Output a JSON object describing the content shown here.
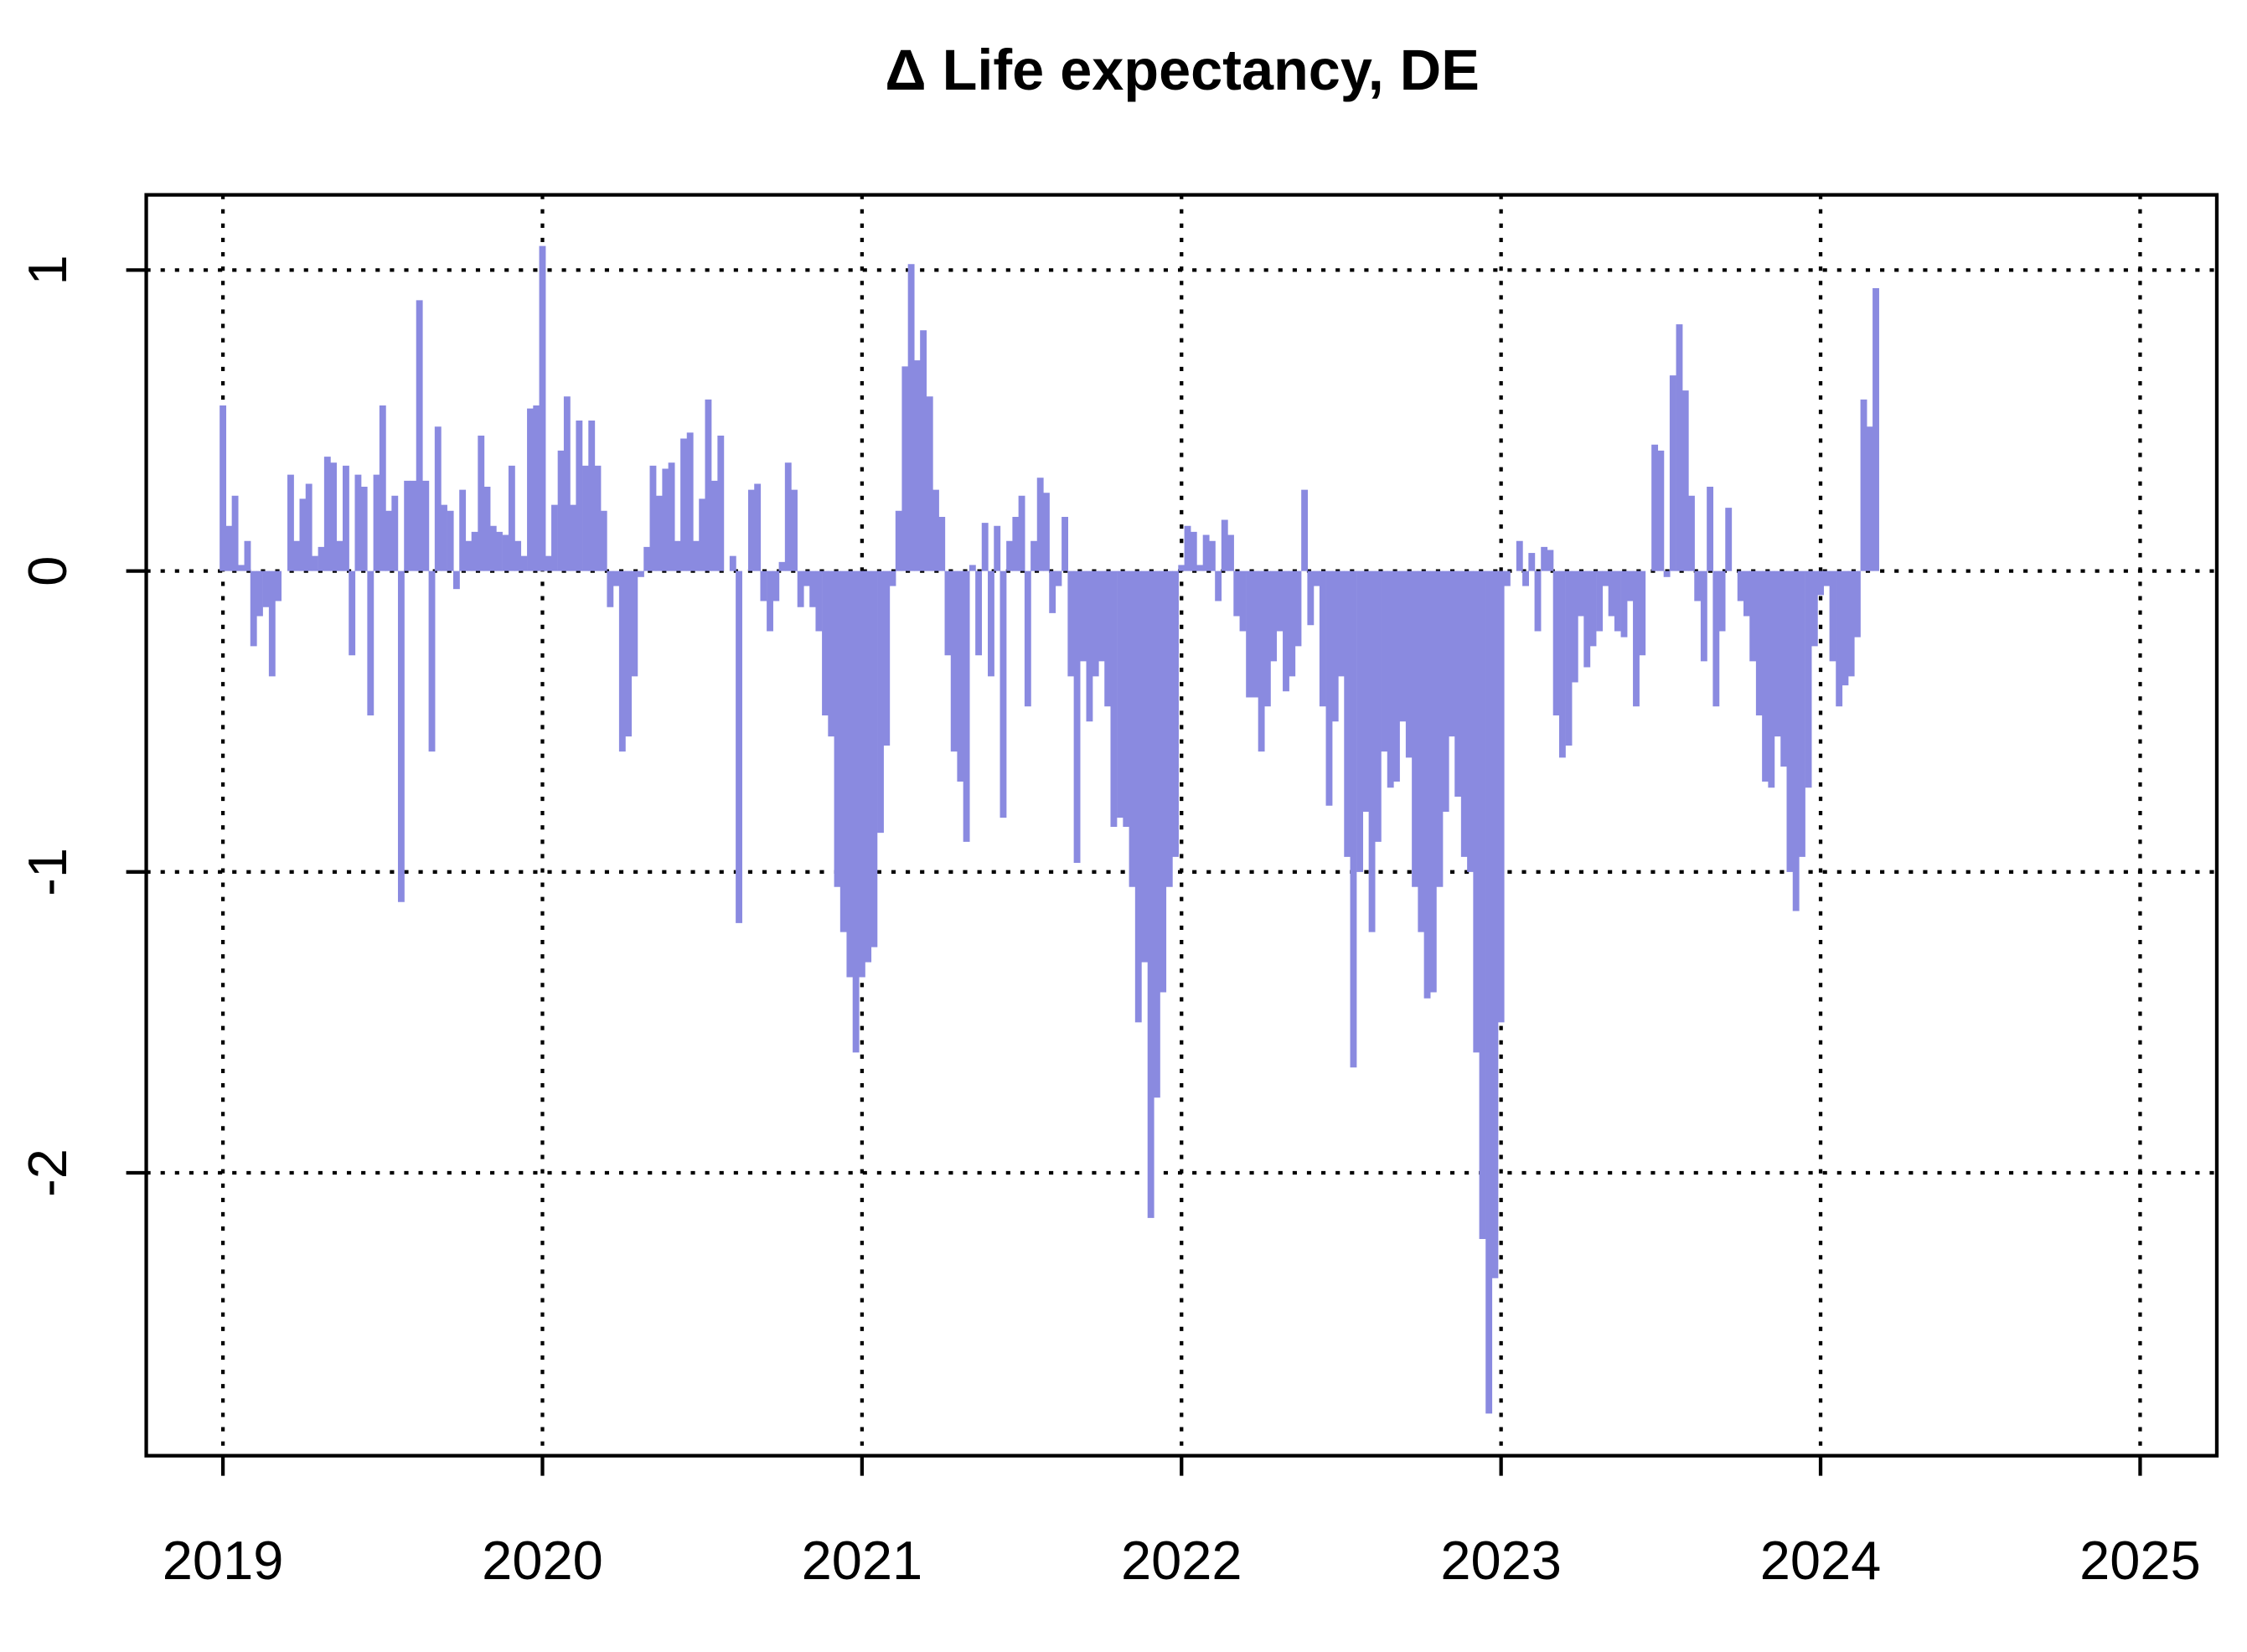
{
  "chart_data": {
    "type": "spike",
    "title": "Δ Life expectancy, DE",
    "color": "#8a8ae0",
    "grid": true,
    "xlim": [
      2018.76,
      2025.24
    ],
    "ylim": [
      -2.94,
      1.25
    ],
    "xticks": [
      2019,
      2020,
      2021,
      2022,
      2023,
      2024,
      2025
    ],
    "yticks": [
      -2,
      -1,
      0,
      1
    ],
    "x": [
      2019.0,
      2019.019,
      2019.038,
      2019.058,
      2019.077,
      2019.096,
      2019.115,
      2019.135,
      2019.154,
      2019.173,
      2019.192,
      2019.212,
      2019.231,
      2019.25,
      2019.269,
      2019.288,
      2019.308,
      2019.327,
      2019.346,
      2019.365,
      2019.385,
      2019.404,
      2019.423,
      2019.442,
      2019.462,
      2019.481,
      2019.5,
      2019.519,
      2019.538,
      2019.558,
      2019.577,
      2019.596,
      2019.615,
      2019.635,
      2019.654,
      2019.673,
      2019.692,
      2019.712,
      2019.731,
      2019.75,
      2019.769,
      2019.788,
      2019.808,
      2019.827,
      2019.846,
      2019.865,
      2019.885,
      2019.904,
      2019.923,
      2019.942,
      2019.962,
      2019.981,
      2020.0,
      2020.019,
      2020.038,
      2020.058,
      2020.077,
      2020.096,
      2020.115,
      2020.135,
      2020.154,
      2020.173,
      2020.192,
      2020.212,
      2020.231,
      2020.25,
      2020.269,
      2020.288,
      2020.308,
      2020.327,
      2020.346,
      2020.365,
      2020.385,
      2020.404,
      2020.423,
      2020.442,
      2020.462,
      2020.481,
      2020.5,
      2020.519,
      2020.538,
      2020.558,
      2020.577,
      2020.596,
      2020.615,
      2020.635,
      2020.654,
      2020.673,
      2020.692,
      2020.712,
      2020.731,
      2020.75,
      2020.769,
      2020.788,
      2020.808,
      2020.827,
      2020.846,
      2020.865,
      2020.885,
      2020.904,
      2020.923,
      2020.942,
      2020.962,
      2020.981,
      2021.0,
      2021.019,
      2021.038,
      2021.058,
      2021.077,
      2021.096,
      2021.115,
      2021.135,
      2021.154,
      2021.173,
      2021.192,
      2021.212,
      2021.231,
      2021.25,
      2021.269,
      2021.288,
      2021.308,
      2021.327,
      2021.346,
      2021.365,
      2021.385,
      2021.404,
      2021.423,
      2021.442,
      2021.462,
      2021.481,
      2021.5,
      2021.519,
      2021.538,
      2021.558,
      2021.577,
      2021.596,
      2021.615,
      2021.635,
      2021.654,
      2021.673,
      2021.692,
      2021.712,
      2021.731,
      2021.75,
      2021.769,
      2021.788,
      2021.808,
      2021.827,
      2021.846,
      2021.865,
      2021.885,
      2021.904,
      2021.923,
      2021.942,
      2021.962,
      2021.981,
      2022.0,
      2022.019,
      2022.038,
      2022.058,
      2022.077,
      2022.096,
      2022.115,
      2022.135,
      2022.154,
      2022.173,
      2022.192,
      2022.212,
      2022.231,
      2022.25,
      2022.269,
      2022.288,
      2022.308,
      2022.327,
      2022.346,
      2022.365,
      2022.385,
      2022.404,
      2022.423,
      2022.442,
      2022.462,
      2022.481,
      2022.5,
      2022.519,
      2022.538,
      2022.558,
      2022.577,
      2022.596,
      2022.615,
      2022.635,
      2022.654,
      2022.673,
      2022.692,
      2022.712,
      2022.731,
      2022.75,
      2022.769,
      2022.788,
      2022.808,
      2022.827,
      2022.846,
      2022.865,
      2022.885,
      2022.904,
      2022.923,
      2022.942,
      2022.962,
      2022.981,
      2023.0,
      2023.019,
      2023.038,
      2023.058,
      2023.077,
      2023.096,
      2023.115,
      2023.135,
      2023.154,
      2023.173,
      2023.192,
      2023.212,
      2023.231,
      2023.25,
      2023.269,
      2023.288,
      2023.308,
      2023.327,
      2023.346,
      2023.365,
      2023.385,
      2023.404,
      2023.423,
      2023.442,
      2023.462,
      2023.481,
      2023.5,
      2023.519,
      2023.538,
      2023.558,
      2023.577,
      2023.596,
      2023.615,
      2023.635,
      2023.654,
      2023.673,
      2023.692,
      2023.712,
      2023.731,
      2023.75,
      2023.769,
      2023.788,
      2023.808,
      2023.827,
      2023.846,
      2023.865,
      2023.885,
      2023.904,
      2023.923,
      2023.942,
      2023.962,
      2023.981,
      2024.0,
      2024.019,
      2024.038,
      2024.058,
      2024.077,
      2024.096,
      2024.115,
      2024.135,
      2024.154,
      2024.173
    ],
    "values": [
      0.55,
      0.15,
      0.25,
      0.02,
      0.1,
      -0.25,
      -0.15,
      -0.12,
      -0.35,
      -0.1,
      0.0,
      0.32,
      0.1,
      0.24,
      0.29,
      0.05,
      0.08,
      0.38,
      0.36,
      0.1,
      0.35,
      -0.28,
      0.32,
      0.28,
      -0.48,
      0.32,
      0.55,
      0.2,
      0.25,
      -1.1,
      0.3,
      0.3,
      0.9,
      0.3,
      -0.6,
      0.48,
      0.22,
      0.2,
      -0.06,
      0.27,
      0.1,
      0.13,
      0.45,
      0.28,
      0.15,
      0.13,
      0.12,
      0.35,
      0.1,
      0.05,
      0.54,
      0.55,
      1.08,
      0.05,
      0.22,
      0.4,
      0.58,
      0.22,
      0.5,
      0.35,
      0.5,
      0.35,
      0.2,
      -0.12,
      -0.05,
      -0.6,
      -0.55,
      -0.35,
      -0.02,
      0.08,
      0.35,
      0.25,
      0.34,
      0.36,
      0.1,
      0.44,
      0.46,
      0.1,
      0.24,
      0.57,
      0.3,
      0.45,
      0.0,
      0.05,
      -1.17,
      0.0,
      0.27,
      0.29,
      -0.1,
      -0.2,
      -0.1,
      0.03,
      0.36,
      0.27,
      -0.12,
      -0.05,
      -0.12,
      -0.2,
      -0.48,
      -0.55,
      -1.05,
      -1.2,
      -1.35,
      -1.6,
      -1.35,
      -1.3,
      -1.25,
      -0.87,
      -0.58,
      -0.05,
      0.2,
      0.68,
      1.02,
      0.7,
      0.8,
      0.58,
      0.27,
      0.18,
      -0.28,
      -0.6,
      -0.7,
      -0.9,
      0.02,
      -0.28,
      0.16,
      -0.35,
      0.15,
      -0.82,
      0.1,
      0.18,
      0.25,
      -0.45,
      0.1,
      0.31,
      0.26,
      -0.14,
      -0.05,
      0.18,
      -0.35,
      -0.97,
      -0.3,
      -0.5,
      -0.35,
      -0.3,
      -0.45,
      -0.85,
      -0.82,
      -0.85,
      -1.05,
      -1.5,
      -1.3,
      -2.15,
      -1.75,
      -1.4,
      -1.05,
      -0.95,
      0.02,
      0.15,
      0.13,
      0.02,
      0.12,
      0.1,
      -0.1,
      0.17,
      0.12,
      -0.15,
      -0.2,
      -0.42,
      -0.42,
      -0.6,
      -0.45,
      -0.3,
      -0.2,
      -0.4,
      -0.35,
      -0.25,
      0.27,
      -0.18,
      -0.05,
      -0.45,
      -0.78,
      -0.5,
      -0.35,
      -0.95,
      -1.65,
      -1.0,
      -0.8,
      -1.2,
      -0.9,
      -0.6,
      -0.72,
      -0.7,
      -0.5,
      -0.62,
      -1.05,
      -1.2,
      -1.42,
      -1.4,
      -1.05,
      -0.8,
      -0.55,
      -0.75,
      -0.95,
      -1.0,
      -1.6,
      -2.22,
      -2.8,
      -2.35,
      -1.5,
      -0.05,
      0.0,
      0.1,
      -0.05,
      0.06,
      -0.2,
      0.08,
      0.07,
      -0.48,
      -0.62,
      -0.58,
      -0.37,
      -0.15,
      -0.32,
      -0.25,
      -0.2,
      -0.05,
      -0.15,
      -0.2,
      -0.22,
      -0.1,
      -0.45,
      -0.28,
      0.0,
      0.42,
      0.4,
      -0.02,
      0.65,
      0.82,
      0.6,
      0.25,
      -0.1,
      -0.3,
      0.28,
      -0.45,
      -0.2,
      0.21,
      0.0,
      -0.1,
      -0.15,
      -0.3,
      -0.48,
      -0.7,
      -0.72,
      -0.55,
      -0.65,
      -1.0,
      -1.13,
      -0.95,
      -0.72,
      -0.25,
      -0.08,
      -0.05,
      -0.3,
      -0.45,
      -0.38,
      -0.35,
      -0.22,
      0.57,
      0.48,
      0.94
    ]
  }
}
